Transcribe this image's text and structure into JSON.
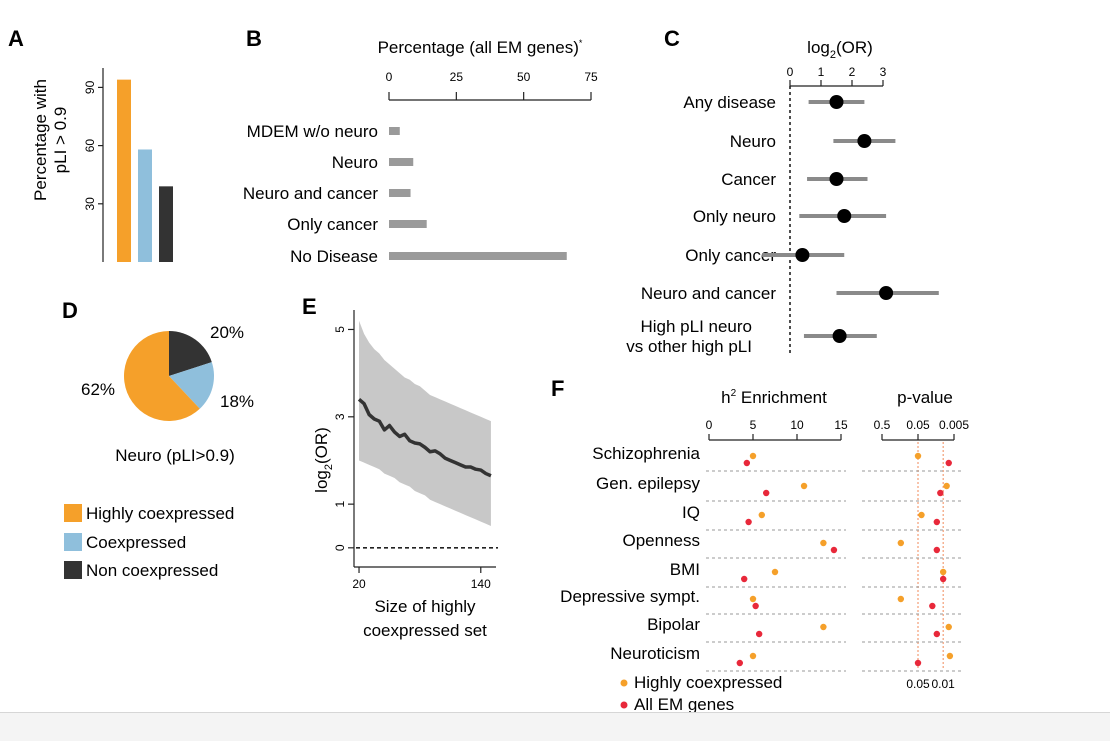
{
  "chart_data": [
    {
      "panel": "A",
      "type": "bar",
      "ylabel": "Percentage with pLI > 0.9",
      "yticks": [
        "30",
        "60",
        "90"
      ],
      "ylim": [
        0,
        100
      ],
      "categories": [
        "Highly coexpressed",
        "Coexpressed",
        "Non coexpressed"
      ],
      "values": [
        94,
        58,
        39
      ],
      "colors": [
        "#f5a02a",
        "#8fbfdc",
        "#333333"
      ]
    },
    {
      "panel": "B",
      "type": "bar",
      "orientation": "horizontal",
      "title": "Percentage (all EM genes)",
      "title_mark": "*",
      "xticks": [
        "0",
        "25",
        "50",
        "75"
      ],
      "xlim": [
        0,
        75
      ],
      "categories": [
        "MDEM w/o neuro",
        "Neuro",
        "Neuro and cancer",
        "Only cancer",
        "No Disease"
      ],
      "values": [
        4,
        9,
        8,
        14,
        66
      ],
      "color": "#9a9a9a"
    },
    {
      "panel": "C",
      "type": "scatter",
      "title": "log2(OR)",
      "title_main": "log",
      "title_sub": "2",
      "title_rest": "(OR)",
      "xticks": [
        "0",
        "1",
        "2",
        "3"
      ],
      "xlim": [
        0,
        3
      ],
      "categories": [
        "Any disease",
        "Neuro",
        "Cancer",
        "Only neuro",
        "Only cancer",
        "Neuro and cancer",
        "High pLI neuro vs other high pLI"
      ],
      "label_lines": [
        [
          "Any disease"
        ],
        [
          "Neuro"
        ],
        [
          "Cancer"
        ],
        [
          "Only neuro"
        ],
        [
          "Only cancer"
        ],
        [
          "Neuro and cancer"
        ],
        [
          "High pLI neuro",
          "vs other high pLI"
        ]
      ],
      "points": [
        {
          "est": 1.5,
          "lo": 0.6,
          "hi": 2.4
        },
        {
          "est": 2.4,
          "lo": 1.4,
          "hi": 3.4
        },
        {
          "est": 1.5,
          "lo": 0.55,
          "hi": 2.5
        },
        {
          "est": 1.75,
          "lo": 0.3,
          "hi": 3.1
        },
        {
          "est": 0.4,
          "lo": -0.9,
          "hi": 1.75
        },
        {
          "est": 3.1,
          "lo": 1.5,
          "hi": 4.8
        },
        {
          "est": 1.6,
          "lo": 0.45,
          "hi": 2.8
        }
      ]
    },
    {
      "panel": "D",
      "type": "pie",
      "title": "Neuro (pLI>0.9)",
      "labels": [
        "Highly coexpressed",
        "Coexpressed",
        "Non coexpressed"
      ],
      "values": [
        62,
        18,
        20
      ],
      "value_labels": [
        "62%",
        "18%",
        "20%"
      ],
      "colors": [
        "#f5a02a",
        "#8fbfdc",
        "#333333"
      ]
    },
    {
      "panel": "E",
      "type": "line",
      "xlabel": "Size of highly coexpressed set",
      "ylabel": "log2(OR)",
      "ylabel_main": "log",
      "ylabel_sub": "2",
      "ylabel_rest": "(OR)",
      "xticks": [
        "20",
        "140"
      ],
      "xlim": [
        18,
        155
      ],
      "yticks": [
        "0",
        "1",
        "3",
        "5"
      ],
      "ylim": [
        -0.05,
        5.4
      ],
      "x": [
        20,
        25,
        30,
        35,
        40,
        45,
        50,
        55,
        60,
        65,
        70,
        75,
        80,
        85,
        90,
        95,
        100,
        105,
        110,
        115,
        120,
        125,
        130,
        135,
        140,
        145,
        150
      ],
      "y": [
        3.4,
        3.3,
        3.05,
        2.95,
        2.9,
        2.7,
        2.8,
        2.65,
        2.55,
        2.6,
        2.45,
        2.4,
        2.38,
        2.3,
        2.2,
        2.22,
        2.15,
        2.05,
        2.0,
        1.95,
        1.9,
        1.85,
        1.85,
        1.8,
        1.78,
        1.7,
        1.65
      ],
      "ci_low": [
        2.0,
        1.95,
        1.9,
        1.85,
        1.8,
        1.7,
        1.65,
        1.6,
        1.5,
        1.45,
        1.4,
        1.3,
        1.25,
        1.2,
        1.1,
        1.05,
        1.0,
        0.95,
        0.9,
        0.85,
        0.8,
        0.75,
        0.7,
        0.65,
        0.6,
        0.55,
        0.5
      ],
      "ci_high": [
        5.2,
        4.9,
        4.7,
        4.55,
        4.45,
        4.3,
        4.2,
        4.1,
        4.0,
        3.9,
        3.85,
        3.75,
        3.7,
        3.6,
        3.5,
        3.45,
        3.4,
        3.35,
        3.3,
        3.25,
        3.2,
        3.15,
        3.1,
        3.05,
        3.0,
        2.95,
        2.9
      ]
    },
    {
      "panel": "F",
      "type": "scatter",
      "subplots": [
        {
          "title": "h2 Enrichment",
          "title_main": "h",
          "title_sup": "2",
          "title_rest": " Enrichment",
          "xticks": [
            "0",
            "5",
            "10",
            "15"
          ],
          "xlim": [
            0,
            15
          ]
        },
        {
          "title": "p-value",
          "xticks": [
            "0.5",
            "0.05",
            "0.005"
          ],
          "xlim": [
            0.5,
            0.005
          ],
          "scale": "log-reversed",
          "threshold_labels": [
            "0.05",
            "0.01"
          ],
          "thresholds": [
            0.05,
            0.01
          ]
        }
      ],
      "categories": [
        "Schizophrenia",
        "Gen. epilepsy",
        "IQ",
        "Openness",
        "BMI",
        "Depressive sympt.",
        "Bipolar",
        "Neuroticism"
      ],
      "series": [
        {
          "name": "Highly coexpressed",
          "color": "#f5a02a",
          "enrichment": [
            5.0,
            10.8,
            6.0,
            13.0,
            7.5,
            5.0,
            13.0,
            5.0
          ],
          "pvalue": [
            0.05,
            0.008,
            0.04,
            0.15,
            0.01,
            0.15,
            0.007,
            0.0065
          ]
        },
        {
          "name": "All EM genes",
          "color": "#e8283a",
          "enrichment": [
            4.3,
            6.5,
            4.5,
            14.2,
            4.0,
            5.3,
            5.7,
            3.5
          ],
          "pvalue": [
            0.007,
            0.012,
            0.015,
            0.015,
            0.01,
            0.02,
            0.015,
            0.05
          ]
        }
      ]
    }
  ]
}
